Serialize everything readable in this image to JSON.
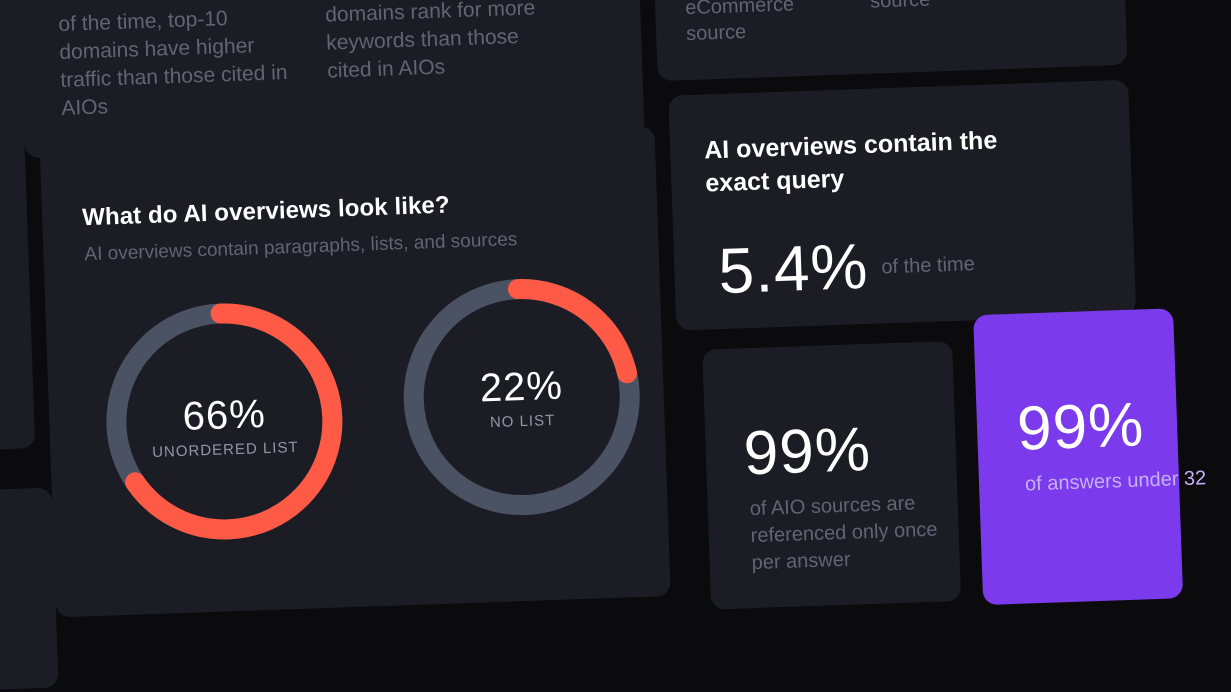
{
  "top_left_card": {
    "col1_text": "of the time, top-10 domains have higher traffic than those cited in AIOs",
    "col2_text": "domains rank for more keywords than those cited in AIOs"
  },
  "top_right_card": {
    "col1_text": "eCommerce source",
    "col2_text": "source"
  },
  "looks_card": {
    "title": "What do AI overviews look like?",
    "subtitle": "AI overviews contain paragraphs, lists, and sources",
    "donuts": [
      {
        "value_text": "66%",
        "value": 0.66,
        "label": "UNORDERED LIST"
      },
      {
        "value_text": "22%",
        "value": 0.22,
        "label": "NO LIST"
      }
    ],
    "colors": {
      "accent": "#ff5a45",
      "track": "#4a5263"
    }
  },
  "exact_card": {
    "title": "AI overviews contain the exact query",
    "value": "5.4%",
    "suffix": "of the time"
  },
  "once_card": {
    "value": "99%",
    "description": "of AIO sources are referenced only once per answer"
  },
  "purple_card": {
    "value": "99%",
    "description": "of answers under 32",
    "color": "#7c3aed"
  }
}
